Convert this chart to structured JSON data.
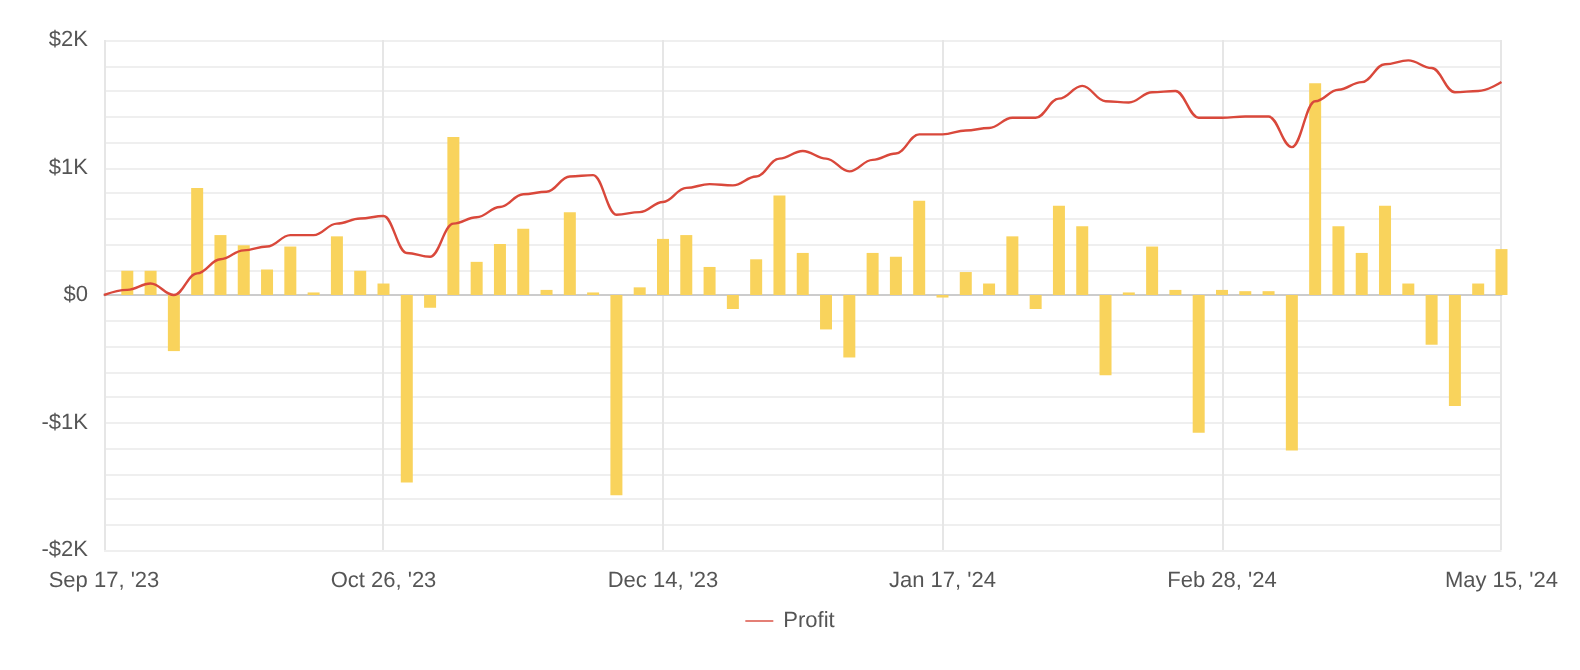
{
  "chart_data": {
    "type": "bar",
    "categories": [
      "Sep 17, '23",
      null,
      null,
      null,
      null,
      null,
      null,
      null,
      null,
      null,
      null,
      null,
      "Oct 26, '23",
      null,
      null,
      null,
      null,
      null,
      null,
      null,
      null,
      null,
      null,
      null,
      "Dec 14, '23",
      null,
      null,
      null,
      null,
      null,
      null,
      null,
      null,
      null,
      null,
      null,
      "Jan 17, '24",
      null,
      null,
      null,
      null,
      null,
      null,
      null,
      null,
      null,
      null,
      null,
      "Feb 28, '24",
      null,
      null,
      null,
      null,
      null,
      null,
      null,
      null,
      null,
      null,
      null,
      "May 15, '24"
    ],
    "series": [
      {
        "color": "#f9d35c",
        "values": [
          null,
          190,
          190,
          -440,
          840,
          470,
          390,
          200,
          380,
          20,
          460,
          190,
          90,
          -1470,
          -100,
          1240,
          260,
          400,
          520,
          40,
          650,
          20,
          -1570,
          60,
          440,
          470,
          220,
          -110,
          280,
          780,
          330,
          -270,
          -490,
          330,
          300,
          740,
          -20,
          180,
          90,
          460,
          -110,
          700,
          540,
          -630,
          20,
          380,
          40,
          -1080,
          40,
          30,
          30,
          -1220,
          1660,
          540,
          330,
          700,
          90,
          -390,
          -870,
          90,
          360
        ]
      },
      {
        "type": "line",
        "name": "Profit",
        "color": "#d9483b",
        "values": [
          0,
          40,
          90,
          0,
          170,
          280,
          350,
          380,
          470,
          470,
          560,
          600,
          620,
          330,
          300,
          560,
          610,
          690,
          790,
          810,
          930,
          940,
          630,
          650,
          730,
          840,
          870,
          860,
          930,
          1070,
          1130,
          1070,
          970,
          1060,
          1110,
          1260,
          1260,
          1290,
          1310,
          1390,
          1390,
          1540,
          1640,
          1520,
          1510,
          1590,
          1600,
          1390,
          1390,
          1400,
          1400,
          1160,
          1520,
          1610,
          1670,
          1810,
          1840,
          1780,
          1590,
          1600,
          1670
        ]
      }
    ],
    "ylim": [
      -2000,
      2000
    ],
    "yticks": [
      {
        "value": -2000,
        "label": "-$2K"
      },
      {
        "value": -1800,
        "label": null
      },
      {
        "value": -1600,
        "label": null
      },
      {
        "value": -1400,
        "label": null
      },
      {
        "value": -1200,
        "label": null
      },
      {
        "value": -1000,
        "label": "-$1K"
      },
      {
        "value": -800,
        "label": null
      },
      {
        "value": -600,
        "label": null
      },
      {
        "value": -400,
        "label": null
      },
      {
        "value": -200,
        "label": null
      },
      {
        "value": 0,
        "label": "$0"
      },
      {
        "value": 200,
        "label": null
      },
      {
        "value": 400,
        "label": null
      },
      {
        "value": 600,
        "label": null
      },
      {
        "value": 800,
        "label": null
      },
      {
        "value": 1000,
        "label": "$1K"
      },
      {
        "value": 1200,
        "label": null
      },
      {
        "value": 1400,
        "label": null
      },
      {
        "value": 1600,
        "label": null
      },
      {
        "value": 1800,
        "label": null
      },
      {
        "value": 2000,
        "label": "$2K"
      }
    ],
    "grid": true,
    "legend": "bottom",
    "marker": "none"
  }
}
